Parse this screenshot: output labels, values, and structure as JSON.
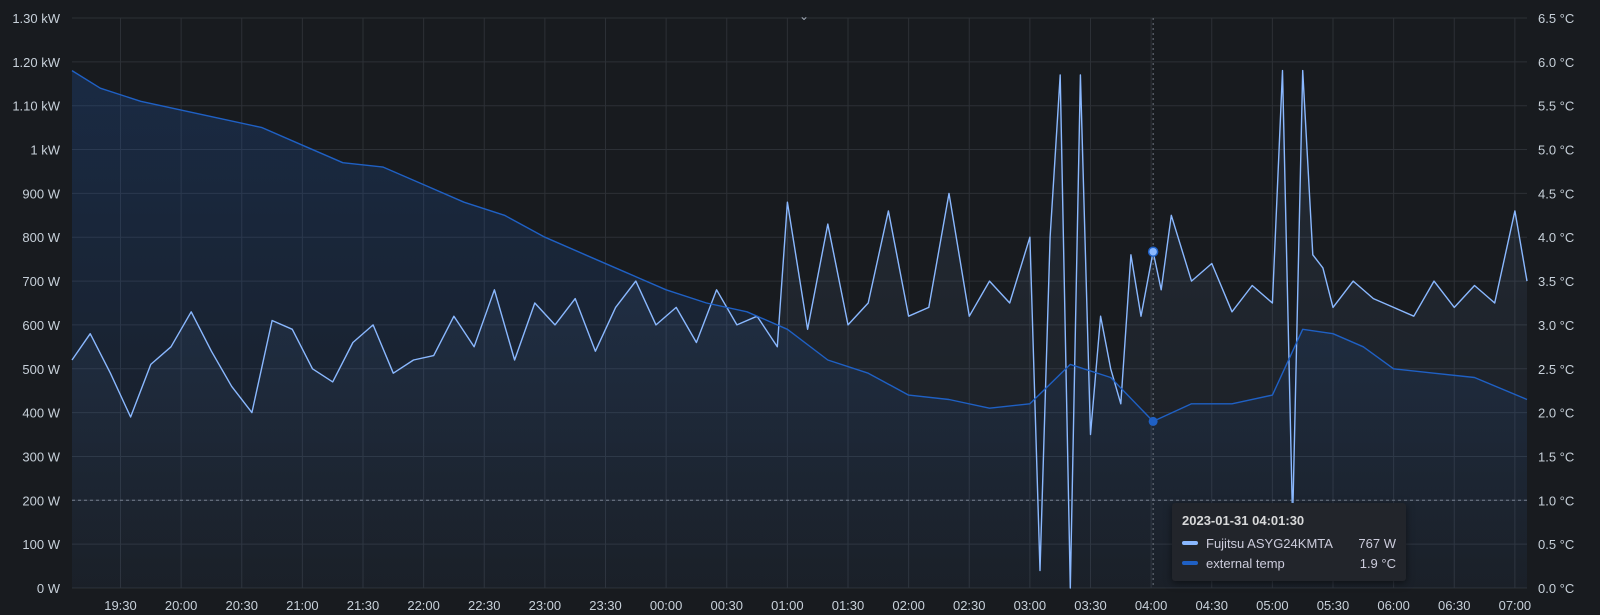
{
  "chart_data": {
    "type": "line",
    "title": "",
    "x_range": [
      "2023-01-30 19:06",
      "2023-01-31 07:06"
    ],
    "x_ticks": [
      "19:30",
      "20:00",
      "20:30",
      "21:00",
      "21:30",
      "22:00",
      "22:30",
      "23:00",
      "23:30",
      "00:00",
      "00:30",
      "01:00",
      "01:30",
      "02:00",
      "02:30",
      "03:00",
      "03:30",
      "04:00",
      "04:30",
      "05:00",
      "05:30",
      "06:00",
      "06:30",
      "07:00"
    ],
    "y_left": {
      "unit": "W",
      "range": [
        0,
        1300
      ],
      "ticks": [
        "0 W",
        "100 W",
        "200 W",
        "300 W",
        "400 W",
        "500 W",
        "600 W",
        "700 W",
        "800 W",
        "900 W",
        "1 kW",
        "1.10 kW",
        "1.20 kW",
        "1.30 kW"
      ]
    },
    "y_right": {
      "unit": "°C",
      "range": [
        0,
        6.5
      ],
      "ticks": [
        "0.0 °C",
        "0.5 °C",
        "1.0 °C",
        "1.5 °C",
        "2.0 °C",
        "2.5 °C",
        "3.0 °C",
        "3.5 °C",
        "4.0 °C",
        "4.5 °C",
        "5.0 °C",
        "5.5 °C",
        "6.0 °C",
        "6.5 °C"
      ]
    },
    "threshold_right": 1.0,
    "grid": true,
    "series": [
      {
        "name": "Fujitsu ASYG24KMTA",
        "axis": "left",
        "color": "#8ab8ff",
        "x": [
          "19:06",
          "19:15",
          "19:25",
          "19:35",
          "19:45",
          "19:55",
          "20:05",
          "20:15",
          "20:25",
          "20:35",
          "20:45",
          "20:55",
          "21:05",
          "21:15",
          "21:25",
          "21:35",
          "21:45",
          "21:55",
          "22:05",
          "22:15",
          "22:25",
          "22:35",
          "22:45",
          "22:55",
          "23:05",
          "23:15",
          "23:25",
          "23:35",
          "23:45",
          "23:55",
          "00:05",
          "00:15",
          "00:25",
          "00:35",
          "00:45",
          "00:55",
          "01:00",
          "01:10",
          "01:20",
          "01:30",
          "01:40",
          "01:50",
          "02:00",
          "02:10",
          "02:20",
          "02:30",
          "02:40",
          "02:50",
          "03:00",
          "03:05",
          "03:10",
          "03:15",
          "03:20",
          "03:25",
          "03:30",
          "03:35",
          "03:40",
          "03:45",
          "03:50",
          "03:55",
          "04:01",
          "04:05",
          "04:10",
          "04:20",
          "04:30",
          "04:40",
          "04:50",
          "05:00",
          "05:05",
          "05:10",
          "05:15",
          "05:20",
          "05:25",
          "05:30",
          "05:40",
          "05:50",
          "06:00",
          "06:10",
          "06:20",
          "06:30",
          "06:40",
          "06:50",
          "07:00",
          "07:06"
        ],
        "values": [
          520,
          580,
          490,
          390,
          510,
          550,
          630,
          540,
          460,
          400,
          610,
          590,
          500,
          470,
          560,
          600,
          490,
          520,
          530,
          620,
          550,
          680,
          520,
          650,
          600,
          660,
          540,
          640,
          700,
          600,
          640,
          560,
          680,
          600,
          620,
          550,
          880,
          590,
          830,
          600,
          650,
          860,
          620,
          640,
          900,
          620,
          700,
          650,
          800,
          40,
          800,
          1170,
          0,
          1170,
          350,
          620,
          500,
          420,
          760,
          620,
          767,
          680,
          850,
          700,
          740,
          630,
          690,
          650,
          1180,
          150,
          1180,
          760,
          730,
          640,
          700,
          660,
          640,
          620,
          700,
          640,
          690,
          650,
          860,
          700
        ]
      },
      {
        "name": "external temp",
        "axis": "right",
        "color": "#1f60c4",
        "x": [
          "19:06",
          "19:20",
          "19:40",
          "20:00",
          "20:20",
          "20:40",
          "21:00",
          "21:20",
          "21:40",
          "22:00",
          "22:20",
          "22:40",
          "23:00",
          "23:20",
          "23:40",
          "00:00",
          "00:20",
          "00:40",
          "01:00",
          "01:20",
          "01:40",
          "02:00",
          "02:20",
          "02:40",
          "03:00",
          "03:20",
          "03:40",
          "04:01",
          "04:20",
          "04:40",
          "05:00",
          "05:15",
          "05:30",
          "05:45",
          "06:00",
          "06:20",
          "06:40",
          "07:06"
        ],
        "values": [
          5.9,
          5.7,
          5.55,
          5.45,
          5.35,
          5.25,
          5.05,
          4.85,
          4.8,
          4.6,
          4.4,
          4.25,
          4.0,
          3.8,
          3.6,
          3.4,
          3.25,
          3.15,
          2.95,
          2.6,
          2.45,
          2.2,
          2.15,
          2.05,
          2.1,
          2.55,
          2.4,
          1.9,
          2.1,
          2.1,
          2.2,
          2.95,
          2.9,
          2.75,
          2.5,
          2.45,
          2.4,
          2.15
        ]
      }
    ],
    "tooltip": {
      "time": "2023-01-31 04:01:30",
      "items": [
        {
          "name": "Fujitsu ASYG24KMTA",
          "value": "767 W",
          "color": "#8ab8ff"
        },
        {
          "name": "external temp",
          "value": "1.9 °C",
          "color": "#1f60c4"
        }
      ]
    },
    "cursor_x": "04:01"
  },
  "ui": {
    "chevron_icon": "chevron-down-icon"
  }
}
